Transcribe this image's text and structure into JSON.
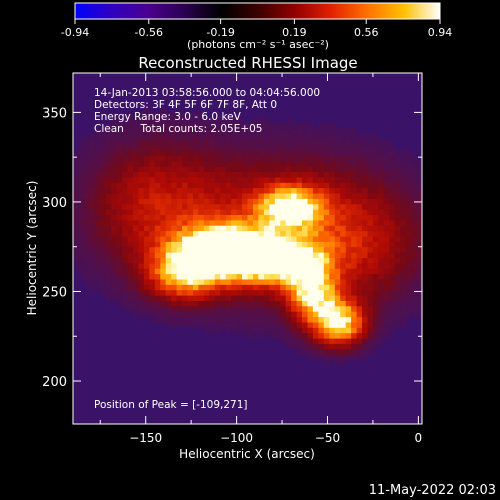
{
  "colorbar": {
    "min": -0.94,
    "max": 0.94,
    "ticks": [
      {
        "value": -0.94,
        "label": "-0.94"
      },
      {
        "value": -0.56,
        "label": "-0.56"
      },
      {
        "value": -0.19,
        "label": "-0.19"
      },
      {
        "value": 0.19,
        "label": "0.19"
      },
      {
        "value": 0.56,
        "label": "0.56"
      },
      {
        "value": 0.94,
        "label": "0.94"
      }
    ],
    "units_label": "(photons cm⁻² s⁻¹ asec⁻²)",
    "stops": [
      "#0000ff",
      "#3000c0",
      "#4a0090",
      "#2a0050",
      "#000000",
      "#3a0000",
      "#900000",
      "#e02000",
      "#ff7000",
      "#ffc000",
      "#ffffff"
    ]
  },
  "chart_data": {
    "type": "heatmap",
    "title": "Reconstructed RHESSI Image",
    "xlabel": "Heliocentric X (arcsec)",
    "ylabel": "Heliocentric Y (arcsec)",
    "xlim": [
      -190,
      2
    ],
    "ylim": [
      176,
      372
    ],
    "x_ticks": [
      -150,
      -100,
      -50,
      0
    ],
    "y_ticks": [
      200,
      250,
      300,
      350
    ],
    "info_lines": [
      "14-Jan-2013 03:58:56.000 to 04:04:56.000",
      "Detectors: 3F 4F 5F 6F 7F 8F, Att 0",
      "Energy Range: 3.0 - 6.0 keV",
      "Clean     Total counts: 2.05E+05"
    ],
    "peak_label": "Position of Peak = [-109,271]",
    "peak": {
      "x": -109,
      "y": 271
    },
    "background_color": "#3a1368",
    "emission_sources": [
      {
        "x": -109,
        "y": 271,
        "sx": 18,
        "sy": 10,
        "amp": 0.94
      },
      {
        "x": -80,
        "y": 266,
        "sx": 16,
        "sy": 9,
        "amp": 0.7
      },
      {
        "x": -72,
        "y": 296,
        "sx": 12,
        "sy": 8,
        "amp": 0.7
      },
      {
        "x": -45,
        "y": 231,
        "sx": 10,
        "sy": 9,
        "amp": 0.84
      },
      {
        "x": -60,
        "y": 248,
        "sx": 9,
        "sy": 12,
        "amp": 0.66
      },
      {
        "x": -130,
        "y": 258,
        "sx": 14,
        "sy": 10,
        "amp": 0.62
      },
      {
        "x": -90,
        "y": 285,
        "sx": 50,
        "sy": 30,
        "amp": 0.4
      },
      {
        "x": -40,
        "y": 275,
        "sx": 30,
        "sy": 25,
        "amp": 0.3
      },
      {
        "x": -150,
        "y": 300,
        "sx": 25,
        "sy": 25,
        "amp": 0.28
      }
    ]
  },
  "timestamp": "11-May-2022 02:03"
}
